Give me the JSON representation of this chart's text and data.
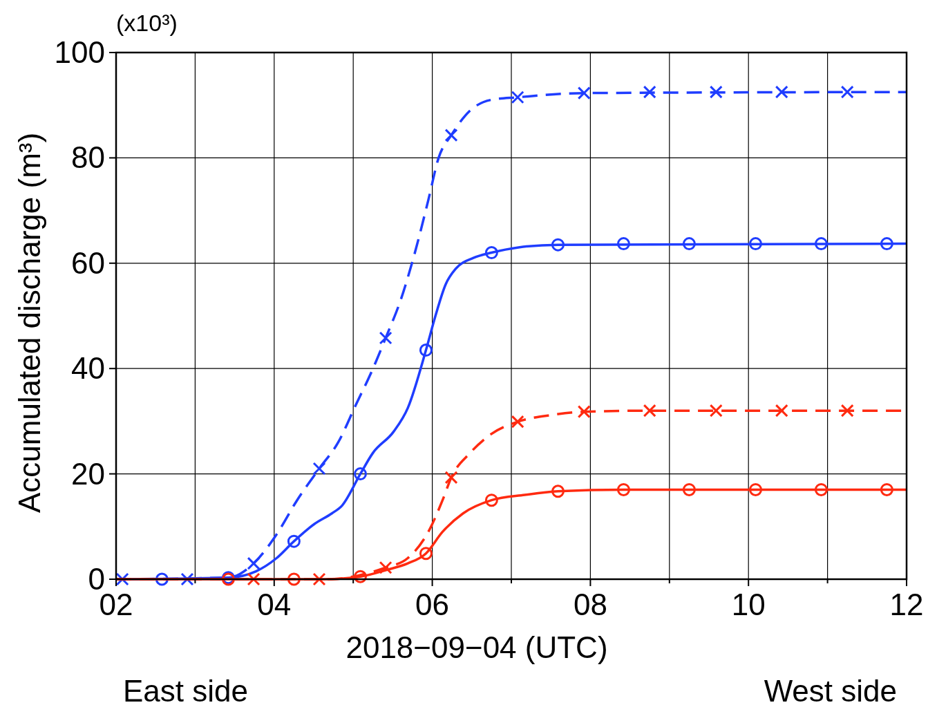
{
  "chart_data": {
    "type": "line",
    "xlabel": "2018−09−04 (UTC)",
    "ylabel": "Accumulated discharge (m³)",
    "annotations": [
      "(x10³)",
      "East side",
      "West side"
    ],
    "xlim": [
      2,
      12
    ],
    "xticks": [
      {
        "value": 2,
        "label": "02"
      },
      {
        "value": 3,
        "label": null
      },
      {
        "value": 4,
        "label": "04"
      },
      {
        "value": 5,
        "label": null
      },
      {
        "value": 6,
        "label": "06"
      },
      {
        "value": 7,
        "label": null
      },
      {
        "value": 8,
        "label": "08"
      },
      {
        "value": 9,
        "label": null
      },
      {
        "value": 10,
        "label": "10"
      },
      {
        "value": 11,
        "label": null
      },
      {
        "value": 12,
        "label": "12"
      }
    ],
    "ylim": [
      0,
      100
    ],
    "yticks": [
      0,
      20,
      40,
      60,
      80,
      100
    ],
    "grid": true,
    "series": [
      {
        "line_style": "solid",
        "color": "#1f3dff",
        "x": [
          2,
          3.42,
          3.77,
          4.03,
          4.25,
          4.51,
          4.73,
          4.86,
          5.09,
          5.25,
          5.51,
          5.69,
          5.92,
          6.04,
          6.17,
          6.3,
          6.52,
          6.75,
          7.09,
          7.59,
          12
        ],
        "values": [
          0,
          0.3,
          1.5,
          4,
          7.2,
          10.5,
          12.5,
          14,
          20,
          24,
          28,
          32.5,
          43.5,
          50,
          56,
          59,
          61,
          62,
          63,
          63.5,
          63.7
        ]
      },
      {
        "type": "scatter",
        "marker": "circle",
        "color": "#1f3dff",
        "x": [
          2.58,
          3.42,
          4.25,
          5.09,
          5.92,
          6.75,
          7.59,
          8.42,
          9.25,
          10.09,
          10.92,
          11.75
        ],
        "values": [
          0,
          0.3,
          7.2,
          20,
          43.5,
          62,
          63.5,
          63.7,
          63.7,
          63.7,
          63.7,
          63.7
        ]
      },
      {
        "line_style": "dashed",
        "color": "#1f3dff",
        "x": [
          2,
          3.42,
          3.74,
          4.03,
          4.29,
          4.57,
          4.81,
          5.03,
          5.25,
          5.41,
          5.6,
          5.78,
          5.95,
          6.08,
          6.24,
          6.48,
          6.74,
          7.08,
          7.92,
          12
        ],
        "values": [
          0,
          0.3,
          3,
          8.5,
          15,
          21,
          26,
          33,
          40,
          45.8,
          53,
          62,
          72,
          80,
          84.3,
          89,
          91,
          91.5,
          92.3,
          92.5
        ]
      },
      {
        "type": "scatter",
        "marker": "cross",
        "color": "#1f3dff",
        "x": [
          2.08,
          2.9,
          3.74,
          4.57,
          5.41,
          6.24,
          7.08,
          7.92,
          8.75,
          9.59,
          10.42,
          11.25
        ],
        "values": [
          0,
          0,
          3,
          21,
          45.8,
          84.3,
          91.5,
          92.3,
          92.5,
          92.5,
          92.5,
          92.5
        ]
      },
      {
        "line_style": "solid",
        "color": "#ff2a10",
        "x": [
          2,
          4.64,
          5.09,
          5.43,
          5.69,
          5.92,
          6.13,
          6.39,
          6.75,
          7.17,
          7.59,
          8.42,
          12
        ],
        "values": [
          0,
          0,
          0.5,
          1.8,
          3,
          4.9,
          9,
          12.5,
          15,
          16,
          16.7,
          17,
          17
        ]
      },
      {
        "type": "scatter",
        "marker": "circle",
        "color": "#ff2a10",
        "x": [
          3.42,
          4.25,
          5.09,
          5.92,
          6.75,
          7.59,
          8.42,
          9.25,
          10.09,
          10.92,
          11.75
        ],
        "values": [
          0,
          0,
          0.5,
          4.9,
          15,
          16.7,
          17,
          17,
          17,
          17,
          17
        ]
      },
      {
        "line_style": "dashed",
        "color": "#ff2a10",
        "x": [
          2,
          4.73,
          5.09,
          5.41,
          5.69,
          5.95,
          6.13,
          6.24,
          6.48,
          6.74,
          7.08,
          7.52,
          7.92,
          8.75,
          12
        ],
        "values": [
          0,
          0,
          0.8,
          2.2,
          4,
          9,
          15,
          19.3,
          24,
          27.5,
          29.9,
          31.2,
          31.8,
          32,
          32
        ]
      },
      {
        "type": "scatter",
        "marker": "cross",
        "color": "#ff2a10",
        "x": [
          3.74,
          4.57,
          5.41,
          6.24,
          7.08,
          7.92,
          8.75,
          9.59,
          10.42,
          11.25
        ],
        "values": [
          0,
          0,
          2.2,
          19.3,
          29.9,
          31.8,
          32,
          32,
          32,
          32
        ]
      }
    ]
  }
}
